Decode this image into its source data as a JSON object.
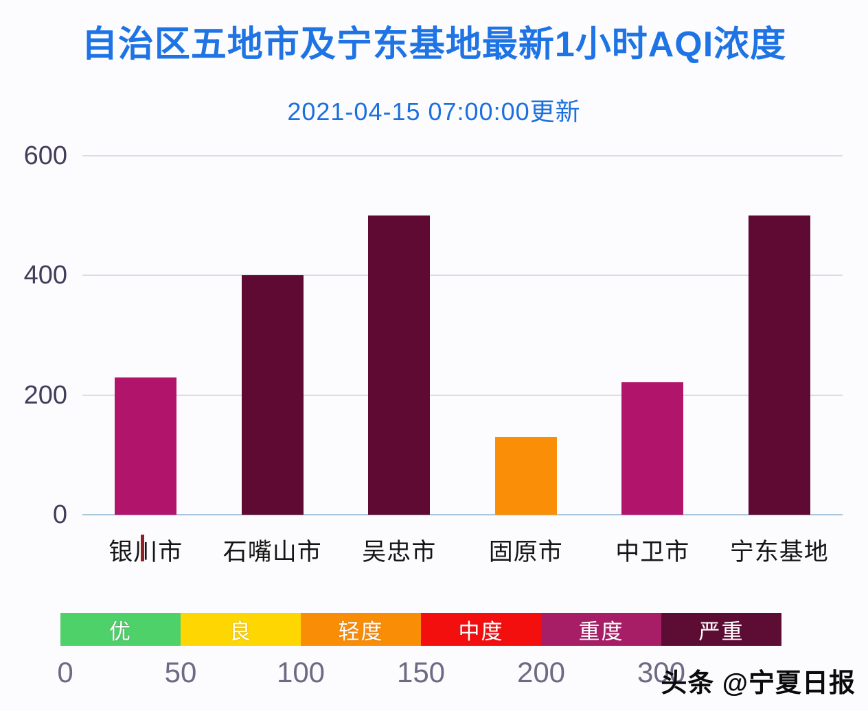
{
  "page": {
    "title": "自治区五地市及宁东基地最新1小时AQI浓度",
    "subtitle": "2021-04-15 07:00:00更新",
    "watermark": "头条 @宁夏日报"
  },
  "colors": {
    "title_blue": "#1e74e5",
    "subtitle_blue": "#1b70dd",
    "axis_label": "#433c5a",
    "scale_label": "#6f6983",
    "gridline": "#dddce3",
    "zero_axis": "#a9c6da",
    "background": "#fcfbfd"
  },
  "chart_data": {
    "type": "bar",
    "title": "自治区五地市及宁东基地最新1小时AQI浓度",
    "subtitle": "2021-04-15 07:00:00更新",
    "categories": [
      "银川市",
      "石嘴山市",
      "吴忠市",
      "固原市",
      "中卫市",
      "宁东基地"
    ],
    "values": [
      230,
      400,
      500,
      130,
      222,
      500
    ],
    "bar_colors": [
      "#b0156b",
      "#5e0a32",
      "#5e0a32",
      "#fa8e06",
      "#b0156b",
      "#5e0a32"
    ],
    "xlabel": "",
    "ylabel": "",
    "ylim": [
      0,
      600
    ],
    "yticks": [
      0,
      200,
      400,
      600
    ],
    "grid": true,
    "legend_position": "bottom"
  },
  "legend": {
    "segments": [
      {
        "label": "优",
        "color": "#4ed169"
      },
      {
        "label": "良",
        "color": "#fed602"
      },
      {
        "label": "轻度",
        "color": "#f98d05"
      },
      {
        "label": "中度",
        "color": "#f30f0e"
      },
      {
        "label": "重度",
        "color": "#a71e66"
      },
      {
        "label": "严重",
        "color": "#5d0c33"
      }
    ],
    "scale_ticks": [
      "0",
      "50",
      "100",
      "150",
      "200",
      "300"
    ]
  }
}
